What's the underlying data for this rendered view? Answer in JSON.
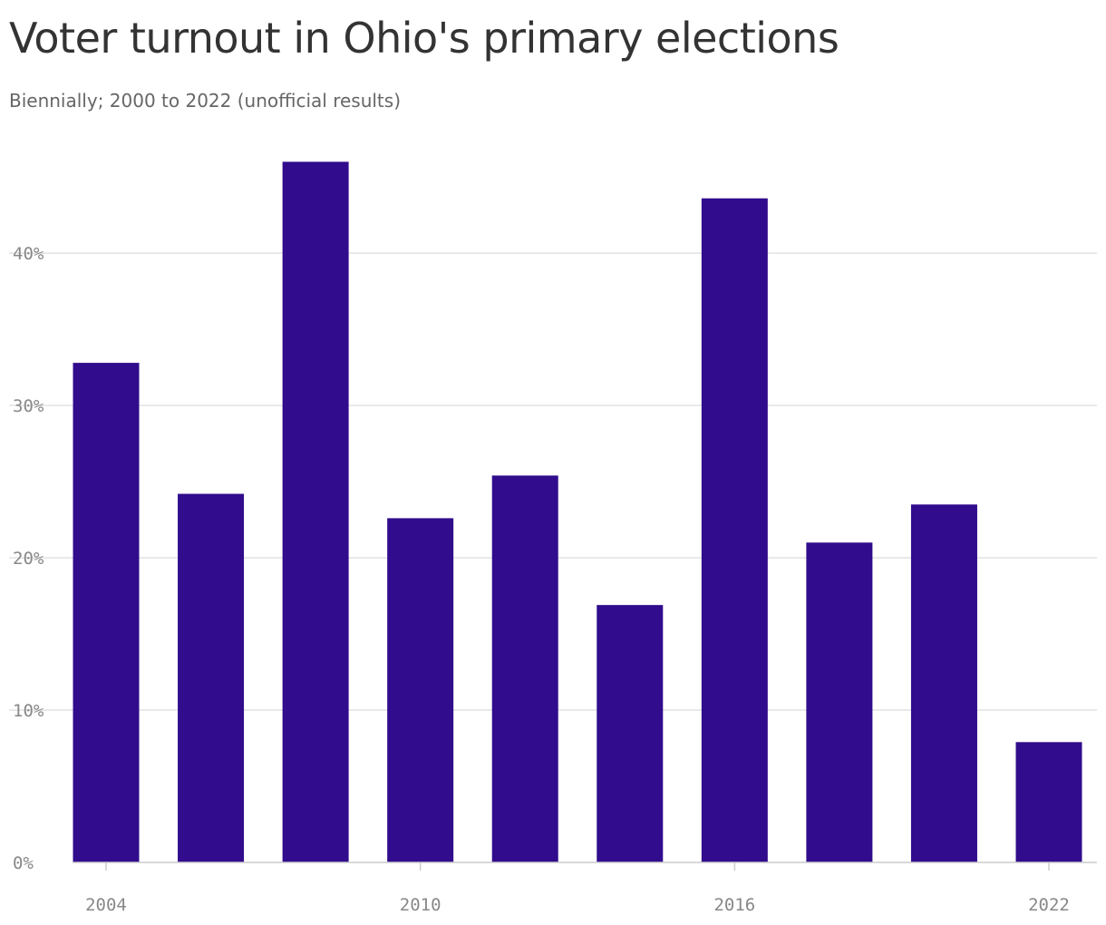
{
  "chart_data": {
    "type": "bar",
    "title": "Voter turnout in Ohio's primary elections",
    "subtitle": "Biennially; 2000 to 2022 (unofficial results)",
    "x": [
      2004,
      2006,
      2008,
      2010,
      2012,
      2014,
      2016,
      2018,
      2020,
      2022
    ],
    "values": [
      32.8,
      24.2,
      46.0,
      22.6,
      25.4,
      16.9,
      43.6,
      21.0,
      23.5,
      7.9
    ],
    "x_tick_values": [
      2004,
      2010,
      2016,
      2022
    ],
    "x_tick_labels": [
      "2004",
      "2010",
      "2016",
      "2022"
    ],
    "y_tick_values": [
      0,
      10,
      20,
      30,
      40
    ],
    "y_tick_labels": [
      "0%",
      "10%",
      "20%",
      "30%",
      "40%"
    ],
    "ylim": [
      0,
      46.5
    ],
    "xlabel": "",
    "ylabel": "",
    "grid": true,
    "legend": "none",
    "bar_color": "#310c8c",
    "grid_color": "#e2e2e2",
    "axis_color": "#cccccc"
  }
}
